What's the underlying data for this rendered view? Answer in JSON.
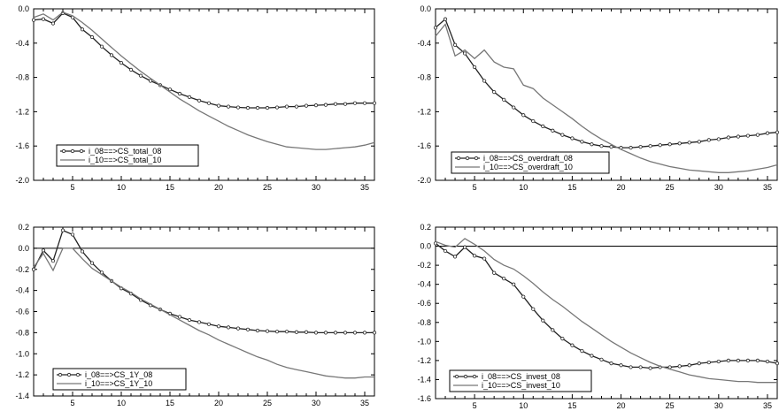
{
  "colors": {
    "series_08": "#222222",
    "series_10": "#777777",
    "zero_line": "#000000"
  },
  "chart_data": [
    {
      "type": "line",
      "title": "",
      "xlabel": "",
      "ylabel": "",
      "legend_position": "bottom-left",
      "grid": false,
      "xlim": [
        1,
        36
      ],
      "ylim": [
        -2.0,
        0.0
      ],
      "xticks": [
        5,
        10,
        15,
        20,
        25,
        30,
        35
      ],
      "yticks": [
        -2.0,
        -1.6,
        -1.2,
        -0.8,
        -0.4,
        0.0
      ],
      "x": [
        1,
        2,
        3,
        4,
        5,
        6,
        7,
        8,
        9,
        10,
        11,
        12,
        13,
        14,
        15,
        16,
        17,
        18,
        19,
        20,
        21,
        22,
        23,
        24,
        25,
        26,
        27,
        28,
        29,
        30,
        31,
        32,
        33,
        34,
        35,
        36
      ],
      "series": [
        {
          "name": "i_08==>CS_total_08",
          "marker": "circle",
          "values": [
            -0.13,
            -0.12,
            -0.17,
            -0.05,
            -0.1,
            -0.24,
            -0.33,
            -0.44,
            -0.54,
            -0.63,
            -0.71,
            -0.78,
            -0.84,
            -0.89,
            -0.94,
            -0.99,
            -1.03,
            -1.07,
            -1.1,
            -1.13,
            -1.14,
            -1.15,
            -1.155,
            -1.155,
            -1.155,
            -1.15,
            -1.14,
            -1.14,
            -1.13,
            -1.125,
            -1.12,
            -1.11,
            -1.11,
            -1.1,
            -1.1,
            -1.1
          ]
        },
        {
          "name": "i_10==>CS_total_10",
          "marker": "none",
          "values": [
            -0.1,
            -0.06,
            -0.13,
            -0.04,
            -0.08,
            -0.16,
            -0.25,
            -0.35,
            -0.45,
            -0.55,
            -0.64,
            -0.73,
            -0.81,
            -0.89,
            -0.97,
            -1.05,
            -1.12,
            -1.19,
            -1.25,
            -1.31,
            -1.37,
            -1.42,
            -1.47,
            -1.51,
            -1.55,
            -1.58,
            -1.61,
            -1.62,
            -1.63,
            -1.64,
            -1.64,
            -1.63,
            -1.62,
            -1.61,
            -1.59,
            -1.56
          ]
        }
      ]
    },
    {
      "type": "line",
      "title": "",
      "xlabel": "",
      "ylabel": "",
      "legend_position": "bottom-left",
      "grid": false,
      "xlim": [
        1,
        36
      ],
      "ylim": [
        -2.0,
        0.0
      ],
      "xticks": [
        5,
        10,
        15,
        20,
        25,
        30,
        35
      ],
      "yticks": [
        -2.0,
        -1.6,
        -1.2,
        -0.8,
        -0.4,
        0.0
      ],
      "x": [
        1,
        2,
        3,
        4,
        5,
        6,
        7,
        8,
        9,
        10,
        11,
        12,
        13,
        14,
        15,
        16,
        17,
        18,
        19,
        20,
        21,
        22,
        23,
        24,
        25,
        26,
        27,
        28,
        29,
        30,
        31,
        32,
        33,
        34,
        35,
        36
      ],
      "series": [
        {
          "name": "i_08==>CS_overdraft_08",
          "marker": "circle",
          "values": [
            -0.22,
            -0.12,
            -0.42,
            -0.52,
            -0.68,
            -0.84,
            -0.97,
            -1.06,
            -1.15,
            -1.24,
            -1.31,
            -1.37,
            -1.42,
            -1.47,
            -1.51,
            -1.55,
            -1.58,
            -1.6,
            -1.61,
            -1.62,
            -1.62,
            -1.61,
            -1.6,
            -1.59,
            -1.58,
            -1.57,
            -1.56,
            -1.55,
            -1.53,
            -1.52,
            -1.5,
            -1.49,
            -1.48,
            -1.47,
            -1.45,
            -1.44
          ]
        },
        {
          "name": "i_10==>CS_overdraft_10",
          "marker": "none",
          "values": [
            -0.32,
            -0.18,
            -0.55,
            -0.48,
            -0.58,
            -0.48,
            -0.62,
            -0.68,
            -0.7,
            -0.89,
            -0.93,
            -1.04,
            -1.12,
            -1.2,
            -1.28,
            -1.37,
            -1.45,
            -1.52,
            -1.58,
            -1.64,
            -1.69,
            -1.74,
            -1.78,
            -1.81,
            -1.84,
            -1.86,
            -1.88,
            -1.89,
            -1.9,
            -1.91,
            -1.91,
            -1.9,
            -1.89,
            -1.87,
            -1.85,
            -1.82
          ]
        }
      ]
    },
    {
      "type": "line",
      "title": "",
      "xlabel": "",
      "ylabel": "",
      "legend_position": "bottom-left",
      "grid": false,
      "xlim": [
        1,
        36
      ],
      "ylim": [
        -1.4,
        0.2
      ],
      "xticks": [
        5,
        10,
        15,
        20,
        25,
        30,
        35
      ],
      "yticks": [
        -1.4,
        -1.2,
        -1.0,
        -0.8,
        -0.6,
        -0.4,
        -0.2,
        0.0,
        0.2
      ],
      "x": [
        1,
        2,
        3,
        4,
        5,
        6,
        7,
        8,
        9,
        10,
        11,
        12,
        13,
        14,
        15,
        16,
        17,
        18,
        19,
        20,
        21,
        22,
        23,
        24,
        25,
        26,
        27,
        28,
        29,
        30,
        31,
        32,
        33,
        34,
        35,
        36
      ],
      "series": [
        {
          "name": "i_08==>CS_1Y_08",
          "marker": "circle",
          "values": [
            -0.2,
            -0.02,
            -0.12,
            0.17,
            0.13,
            -0.03,
            -0.14,
            -0.23,
            -0.31,
            -0.38,
            -0.43,
            -0.49,
            -0.54,
            -0.58,
            -0.62,
            -0.65,
            -0.68,
            -0.7,
            -0.72,
            -0.74,
            -0.75,
            -0.76,
            -0.77,
            -0.78,
            -0.785,
            -0.79,
            -0.79,
            -0.795,
            -0.795,
            -0.8,
            -0.8,
            -0.8,
            -0.8,
            -0.8,
            -0.8,
            -0.8
          ]
        },
        {
          "name": "i_10==>CS_1Y_10",
          "marker": "none",
          "values": [
            -0.18,
            -0.05,
            -0.21,
            0.0,
            0.0,
            -0.1,
            -0.19,
            -0.25,
            -0.31,
            -0.37,
            -0.42,
            -0.48,
            -0.53,
            -0.58,
            -0.63,
            -0.68,
            -0.73,
            -0.78,
            -0.82,
            -0.87,
            -0.91,
            -0.95,
            -0.99,
            -1.03,
            -1.06,
            -1.1,
            -1.13,
            -1.15,
            -1.17,
            -1.19,
            -1.21,
            -1.22,
            -1.23,
            -1.23,
            -1.22,
            -1.22
          ]
        }
      ]
    },
    {
      "type": "line",
      "title": "",
      "xlabel": "",
      "ylabel": "",
      "legend_position": "bottom-left",
      "grid": false,
      "xlim": [
        1,
        36
      ],
      "ylim": [
        -1.6,
        0.2
      ],
      "xticks": [
        5,
        10,
        15,
        20,
        25,
        30,
        35
      ],
      "yticks": [
        -1.6,
        -1.4,
        -1.2,
        -1.0,
        -0.8,
        -0.6,
        -0.4,
        -0.2,
        0.0,
        0.2
      ],
      "x": [
        1,
        2,
        3,
        4,
        5,
        6,
        7,
        8,
        9,
        10,
        11,
        12,
        13,
        14,
        15,
        16,
        17,
        18,
        19,
        20,
        21,
        22,
        23,
        24,
        25,
        26,
        27,
        28,
        29,
        30,
        31,
        32,
        33,
        34,
        35,
        36
      ],
      "series": [
        {
          "name": "i_08==>CS_invest_08",
          "marker": "circle",
          "values": [
            0.03,
            -0.05,
            -0.11,
            -0.01,
            -0.1,
            -0.13,
            -0.28,
            -0.34,
            -0.4,
            -0.53,
            -0.66,
            -0.78,
            -0.88,
            -0.97,
            -1.04,
            -1.1,
            -1.15,
            -1.19,
            -1.23,
            -1.25,
            -1.27,
            -1.27,
            -1.28,
            -1.27,
            -1.27,
            -1.26,
            -1.25,
            -1.23,
            -1.22,
            -1.21,
            -1.2,
            -1.2,
            -1.2,
            -1.2,
            -1.21,
            -1.23
          ]
        },
        {
          "name": "i_10==>CS_invest_10",
          "marker": "none",
          "values": [
            0.05,
            0.01,
            -0.01,
            0.08,
            0.02,
            -0.05,
            -0.14,
            -0.2,
            -0.24,
            -0.31,
            -0.39,
            -0.48,
            -0.56,
            -0.63,
            -0.71,
            -0.79,
            -0.86,
            -0.93,
            -1.0,
            -1.06,
            -1.12,
            -1.17,
            -1.22,
            -1.26,
            -1.29,
            -1.32,
            -1.35,
            -1.37,
            -1.39,
            -1.4,
            -1.41,
            -1.42,
            -1.42,
            -1.43,
            -1.43,
            -1.43
          ]
        }
      ]
    }
  ]
}
